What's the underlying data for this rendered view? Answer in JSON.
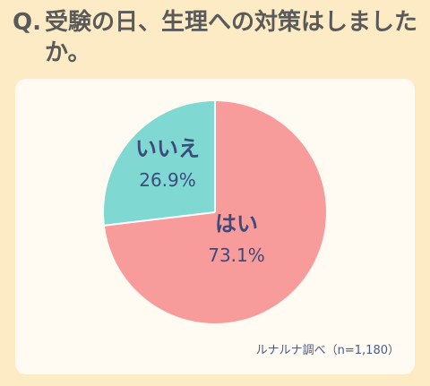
{
  "question": {
    "prefix": "Q.",
    "text": "受験の日、生理への対策はしましたか。"
  },
  "chart_data": {
    "type": "pie",
    "slices": [
      {
        "label": "はい",
        "value": 73.1,
        "display": "73.1%",
        "color": "#f89b9b"
      },
      {
        "label": "いいえ",
        "value": 26.9,
        "display": "26.9%",
        "color": "#80d8d3"
      }
    ]
  },
  "source": "ルナルナ調べ（n=1,180）"
}
